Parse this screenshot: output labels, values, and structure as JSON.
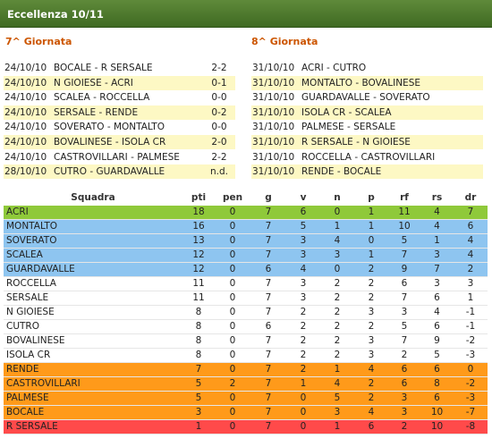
{
  "header": {
    "title": "Eccellenza 10/11"
  },
  "rounds": [
    {
      "title": "7^ Giornata",
      "matches": [
        {
          "date": "24/10/10",
          "teams": "BOCALE - R SERSALE",
          "score": "2-2",
          "highlight": false
        },
        {
          "date": "24/10/10",
          "teams": "N GIOIESE - ACRI",
          "score": "0-1",
          "highlight": true
        },
        {
          "date": "24/10/10",
          "teams": "SCALEA - ROCCELLA",
          "score": "0-0",
          "highlight": false
        },
        {
          "date": "24/10/10",
          "teams": "SERSALE - RENDE",
          "score": "0-2",
          "highlight": true
        },
        {
          "date": "24/10/10",
          "teams": "SOVERATO - MONTALTO",
          "score": "0-0",
          "highlight": false
        },
        {
          "date": "24/10/10",
          "teams": "BOVALINESE - ISOLA CR",
          "score": "2-0",
          "highlight": true
        },
        {
          "date": "24/10/10",
          "teams": "CASTROVILLARI - PALMESE",
          "score": "2-2",
          "highlight": false
        },
        {
          "date": "28/10/10",
          "teams": "CUTRO - GUARDAVALLE",
          "score": "n.d.",
          "highlight": true
        }
      ]
    },
    {
      "title": "8^ Giornata",
      "matches": [
        {
          "date": "31/10/10",
          "teams": "ACRI - CUTRO",
          "score": "",
          "highlight": false
        },
        {
          "date": "31/10/10",
          "teams": "MONTALTO - BOVALINESE",
          "score": "",
          "highlight": true
        },
        {
          "date": "31/10/10",
          "teams": "GUARDAVALLE - SOVERATO",
          "score": "",
          "highlight": false
        },
        {
          "date": "31/10/10",
          "teams": "ISOLA CR - SCALEA",
          "score": "",
          "highlight": true
        },
        {
          "date": "31/10/10",
          "teams": "PALMESE - SERSALE",
          "score": "",
          "highlight": false
        },
        {
          "date": "31/10/10",
          "teams": "R SERSALE - N GIOIESE",
          "score": "",
          "highlight": true
        },
        {
          "date": "31/10/10",
          "teams": "ROCCELLA - CASTROVILLARI",
          "score": "",
          "highlight": false
        },
        {
          "date": "31/10/10",
          "teams": "RENDE - BOCALE",
          "score": "",
          "highlight": true
        }
      ]
    }
  ],
  "standings": {
    "headers": [
      "Squadra",
      "pti",
      "pen",
      "g",
      "v",
      "n",
      "p",
      "rf",
      "rs",
      "dr"
    ],
    "zone_colors": {
      "leader": "#8fc93a",
      "playoff": "#8ec5f0",
      "none": "#ffffff",
      "playout": "#ff9a1a",
      "relegation": "#ff4a4a"
    },
    "rows": [
      {
        "team": "ACRI",
        "pti": "18",
        "pen": "0",
        "g": "7",
        "v": "6",
        "n": "0",
        "p": "1",
        "rf": "11",
        "rs": "4",
        "dr": "7",
        "zone": "leader"
      },
      {
        "team": "MONTALTO",
        "pti": "16",
        "pen": "0",
        "g": "7",
        "v": "5",
        "n": "1",
        "p": "1",
        "rf": "10",
        "rs": "4",
        "dr": "6",
        "zone": "playoff"
      },
      {
        "team": "SOVERATO",
        "pti": "13",
        "pen": "0",
        "g": "7",
        "v": "3",
        "n": "4",
        "p": "0",
        "rf": "5",
        "rs": "1",
        "dr": "4",
        "zone": "playoff"
      },
      {
        "team": "SCALEA",
        "pti": "12",
        "pen": "0",
        "g": "7",
        "v": "3",
        "n": "3",
        "p": "1",
        "rf": "7",
        "rs": "3",
        "dr": "4",
        "zone": "playoff"
      },
      {
        "team": "GUARDAVALLE",
        "pti": "12",
        "pen": "0",
        "g": "6",
        "v": "4",
        "n": "0",
        "p": "2",
        "rf": "9",
        "rs": "7",
        "dr": "2",
        "zone": "playoff"
      },
      {
        "team": "ROCCELLA",
        "pti": "11",
        "pen": "0",
        "g": "7",
        "v": "3",
        "n": "2",
        "p": "2",
        "rf": "6",
        "rs": "3",
        "dr": "3",
        "zone": "none"
      },
      {
        "team": "SERSALE",
        "pti": "11",
        "pen": "0",
        "g": "7",
        "v": "3",
        "n": "2",
        "p": "2",
        "rf": "7",
        "rs": "6",
        "dr": "1",
        "zone": "none"
      },
      {
        "team": "N GIOIESE",
        "pti": "8",
        "pen": "0",
        "g": "7",
        "v": "2",
        "n": "2",
        "p": "3",
        "rf": "3",
        "rs": "4",
        "dr": "-1",
        "zone": "none"
      },
      {
        "team": "CUTRO",
        "pti": "8",
        "pen": "0",
        "g": "6",
        "v": "2",
        "n": "2",
        "p": "2",
        "rf": "5",
        "rs": "6",
        "dr": "-1",
        "zone": "none"
      },
      {
        "team": "BOVALINESE",
        "pti": "8",
        "pen": "0",
        "g": "7",
        "v": "2",
        "n": "2",
        "p": "3",
        "rf": "7",
        "rs": "9",
        "dr": "-2",
        "zone": "none"
      },
      {
        "team": "ISOLA CR",
        "pti": "8",
        "pen": "0",
        "g": "7",
        "v": "2",
        "n": "2",
        "p": "3",
        "rf": "2",
        "rs": "5",
        "dr": "-3",
        "zone": "none"
      },
      {
        "team": "RENDE",
        "pti": "7",
        "pen": "0",
        "g": "7",
        "v": "2",
        "n": "1",
        "p": "4",
        "rf": "6",
        "rs": "6",
        "dr": "0",
        "zone": "playout"
      },
      {
        "team": "CASTROVILLARI",
        "pti": "5",
        "pen": "2",
        "g": "7",
        "v": "1",
        "n": "4",
        "p": "2",
        "rf": "6",
        "rs": "8",
        "dr": "-2",
        "zone": "playout"
      },
      {
        "team": "PALMESE",
        "pti": "5",
        "pen": "0",
        "g": "7",
        "v": "0",
        "n": "5",
        "p": "2",
        "rf": "3",
        "rs": "6",
        "dr": "-3",
        "zone": "playout"
      },
      {
        "team": "BOCALE",
        "pti": "3",
        "pen": "0",
        "g": "7",
        "v": "0",
        "n": "3",
        "p": "4",
        "rf": "3",
        "rs": "10",
        "dr": "-7",
        "zone": "playout"
      },
      {
        "team": "R SERSALE",
        "pti": "1",
        "pen": "0",
        "g": "7",
        "v": "0",
        "n": "1",
        "p": "6",
        "rf": "2",
        "rs": "10",
        "dr": "-8",
        "zone": "relegation"
      }
    ]
  }
}
